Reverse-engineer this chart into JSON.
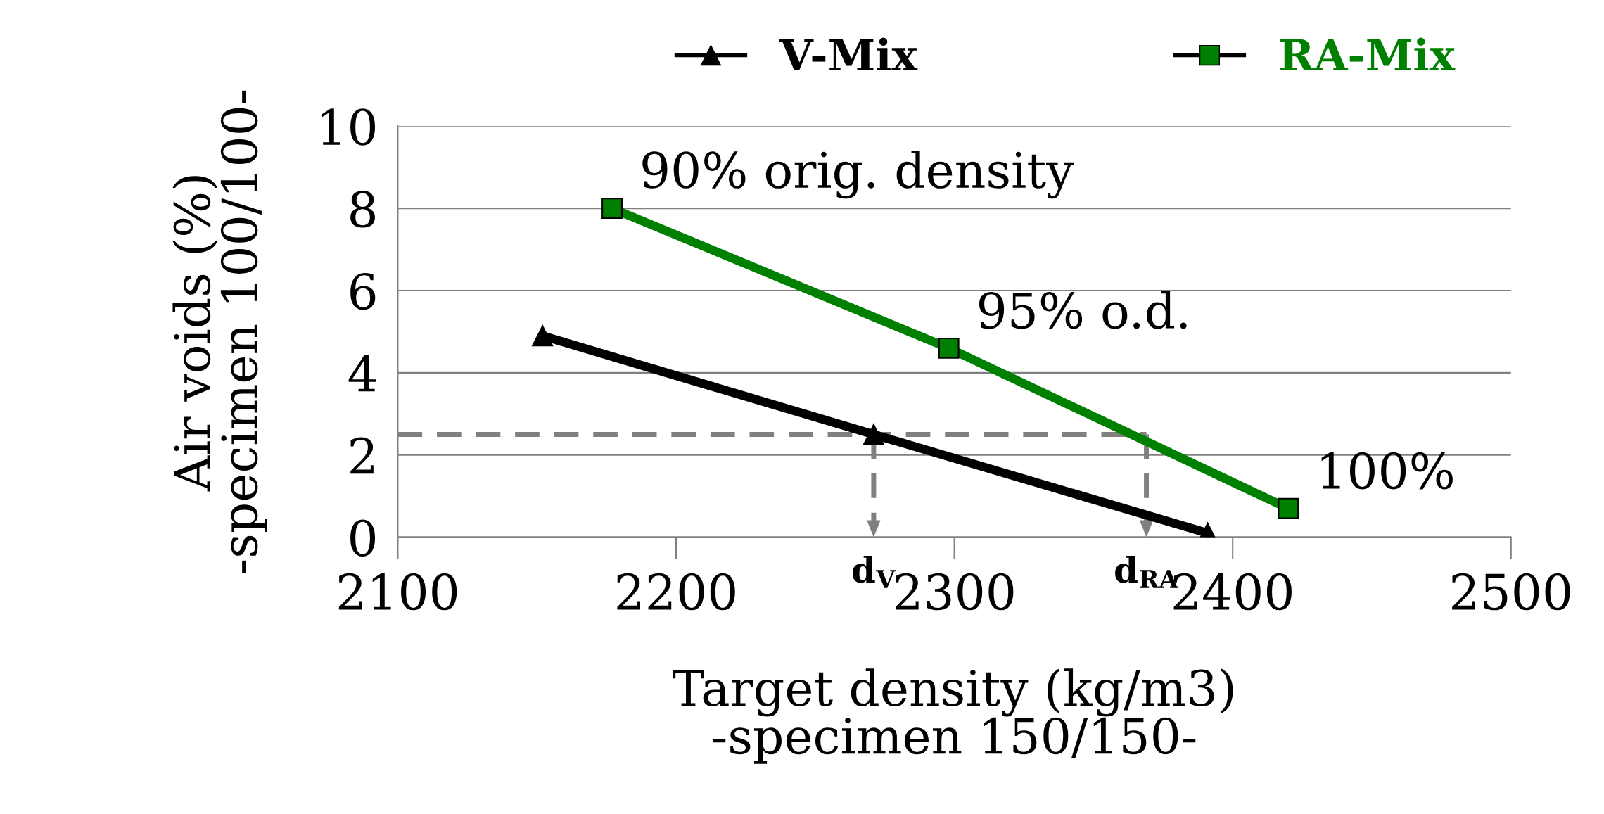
{
  "chart_data": {
    "type": "line",
    "xlabel": "Target density (kg/m3)\n-specimen 150/150-",
    "ylabel": "Air voids (%)\n-specimen 100/100-",
    "series": [
      {
        "name": "V-Mix",
        "color": "#000000",
        "marker": "triangle",
        "x": [
          2152,
          2271,
          2391
        ],
        "values": [
          4.9,
          2.5,
          0.1
        ]
      },
      {
        "name": "RA-Mix",
        "color": "#008000",
        "marker": "square",
        "x": [
          2177,
          2298,
          2420
        ],
        "values": [
          8.0,
          4.6,
          0.7
        ]
      }
    ],
    "xlim": [
      2100,
      2500
    ],
    "xticks": [
      2100,
      2200,
      2300,
      2400,
      2500
    ],
    "ylim": [
      0,
      10
    ],
    "yticks": [
      0,
      2,
      4,
      6,
      8,
      10
    ],
    "grid": "y",
    "legend": "top",
    "line_style": "solid",
    "ref_lines": [
      {
        "axis": "y",
        "value": 2.5,
        "color": "#808080",
        "line_style": "dashed"
      },
      {
        "axis": "x",
        "value": 2271,
        "label": "d$_{V}$",
        "color": "#808080",
        "line_style": "dashed"
      },
      {
        "axis": "x",
        "value": 2369,
        "label": "d$_{RA}$",
        "color": "#808080",
        "line_style": "dashed"
      }
    ],
    "annotations": [
      {
        "text": "90% orig. density",
        "x": 2177,
        "y": 8.0
      },
      {
        "text": "95% o.d.",
        "x": 2298,
        "y": 4.6
      },
      {
        "text": "100%",
        "x": 2420,
        "y": 0.7
      }
    ]
  }
}
